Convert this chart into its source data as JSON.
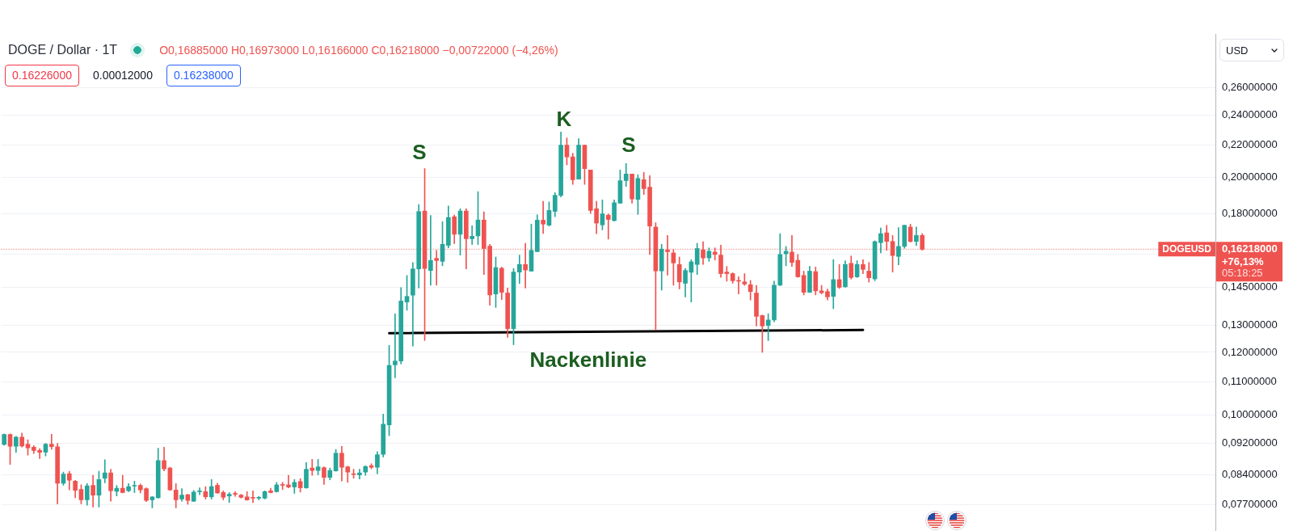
{
  "chart_data": {
    "type": "candlestick",
    "title": "DOGE / Dollar · 1T",
    "subtitle": "O0,16885000 H0,16973000 L0,16166000 C0,16218000 −0,00722000 (−4,26%)",
    "ylabel": "USD",
    "categories": [
      null,
      null,
      null,
      null,
      null,
      null,
      null,
      null,
      null,
      null,
      null,
      null,
      null,
      null,
      null,
      null,
      null,
      null,
      null,
      null,
      null,
      null,
      null,
      null,
      null,
      null,
      null,
      null,
      null,
      null,
      null,
      null,
      null,
      null,
      null,
      null,
      null,
      null,
      null,
      null,
      null,
      null,
      null,
      null,
      null,
      null,
      null,
      null,
      null,
      null,
      null,
      null,
      null,
      null,
      null,
      null,
      null,
      null,
      null,
      null,
      null,
      null,
      null,
      null,
      null,
      null,
      null,
      null,
      null,
      null,
      null,
      null,
      null,
      null,
      null,
      null,
      null,
      null,
      null,
      null,
      null,
      null,
      null,
      null,
      null,
      null,
      null,
      null,
      null,
      null,
      null,
      null,
      null,
      null,
      null,
      null,
      null,
      null,
      null,
      null,
      null,
      null,
      null,
      null,
      null,
      null,
      null,
      null,
      null,
      null,
      null,
      null,
      null,
      null,
      null,
      null,
      null,
      null,
      null,
      null,
      null,
      null,
      null,
      null,
      null,
      null,
      null,
      null,
      null,
      null,
      null,
      null,
      null,
      null,
      null,
      null,
      null,
      null,
      null,
      null,
      null,
      null,
      null,
      null,
      null,
      null,
      null,
      null,
      null,
      null,
      null,
      null,
      null,
      null,
      null,
      null,
      null,
      null,
      null,
      null,
      null,
      null,
      null,
      null,
      null,
      null,
      null,
      null,
      null,
      null,
      null,
      null,
      null,
      null,
      null,
      null,
      null,
      null,
      null,
      null,
      null,
      null,
      null,
      null,
      null,
      null,
      null,
      null,
      null,
      null,
      null,
      null,
      null,
      null,
      null,
      null,
      null,
      null,
      null,
      null,
      null,
      null,
      null,
      null,
      null
    ],
    "ohlc": [
      [
        0.0917,
        0.0946,
        0.0915,
        0.0944
      ],
      [
        0.0944,
        0.0946,
        0.0865,
        0.0912
      ],
      [
        0.0912,
        0.0939,
        0.0896,
        0.0937
      ],
      [
        0.0937,
        0.0948,
        0.091,
        0.0913
      ],
      [
        0.0918,
        0.093,
        0.0889,
        0.0908
      ],
      [
        0.091,
        0.0914,
        0.0893,
        0.0901
      ],
      [
        0.0901,
        0.0906,
        0.088,
        0.0896
      ],
      [
        0.0897,
        0.092,
        0.0887,
        0.0918
      ],
      [
        0.0918,
        0.0945,
        0.0904,
        0.0911
      ],
      [
        0.0911,
        0.092,
        0.0771,
        0.0819
      ],
      [
        0.0819,
        0.0846,
        0.0814,
        0.0841
      ],
      [
        0.0842,
        0.0848,
        0.0803,
        0.0826
      ],
      [
        0.0824,
        0.0826,
        0.0785,
        0.0802
      ],
      [
        0.0804,
        0.0815,
        0.0771,
        0.078
      ],
      [
        0.078,
        0.0818,
        0.0768,
        0.0813
      ],
      [
        0.0814,
        0.0838,
        0.0764,
        0.0791
      ],
      [
        0.0791,
        0.0848,
        0.0764,
        0.0828
      ],
      [
        0.0831,
        0.0877,
        0.082,
        0.0844
      ],
      [
        0.0844,
        0.0853,
        0.0777,
        0.0801
      ],
      [
        0.08,
        0.0814,
        0.0789,
        0.0807
      ],
      [
        0.0807,
        0.0838,
        0.0796,
        0.0797
      ],
      [
        0.0801,
        0.0818,
        0.0799,
        0.0811
      ],
      [
        0.0812,
        0.0824,
        0.0797,
        0.0814
      ],
      [
        0.0814,
        0.0817,
        0.0796,
        0.0803
      ],
      [
        0.0806,
        0.0808,
        0.0776,
        0.0779
      ],
      [
        0.078,
        0.0788,
        0.0762,
        0.0787
      ],
      [
        0.0785,
        0.0907,
        0.0784,
        0.0875
      ],
      [
        0.0875,
        0.091,
        0.0849,
        0.0854
      ],
      [
        0.0856,
        0.0858,
        0.0802,
        0.0803
      ],
      [
        0.0803,
        0.0818,
        0.0762,
        0.078
      ],
      [
        0.0782,
        0.0806,
        0.0777,
        0.0791
      ],
      [
        0.0792,
        0.0793,
        0.077,
        0.0779
      ],
      [
        0.0777,
        0.0802,
        0.0776,
        0.0798
      ],
      [
        0.0799,
        0.0808,
        0.0792,
        0.0801
      ],
      [
        0.0799,
        0.0811,
        0.0782,
        0.0787
      ],
      [
        0.0787,
        0.0828,
        0.0782,
        0.0811
      ],
      [
        0.0814,
        0.0819,
        0.0795,
        0.0796
      ],
      [
        0.0797,
        0.0801,
        0.078,
        0.0786
      ],
      [
        0.0789,
        0.0797,
        0.0774,
        0.0793
      ],
      [
        0.0795,
        0.0799,
        0.0788,
        0.0793
      ],
      [
        0.0791,
        0.0793,
        0.0784,
        0.0786
      ],
      [
        0.0787,
        0.0799,
        0.0779,
        0.078
      ],
      [
        0.0785,
        0.0801,
        0.0774,
        0.0784
      ],
      [
        0.0784,
        0.0788,
        0.078,
        0.0786
      ],
      [
        0.0784,
        0.0801,
        0.0782,
        0.0799
      ],
      [
        0.0801,
        0.0807,
        0.0796,
        0.0797
      ],
      [
        0.0799,
        0.0821,
        0.0798,
        0.0815
      ],
      [
        0.0815,
        0.0821,
        0.0804,
        0.0814
      ],
      [
        0.0815,
        0.0838,
        0.0808,
        0.081
      ],
      [
        0.081,
        0.0828,
        0.0795,
        0.0821
      ],
      [
        0.0823,
        0.083,
        0.0798,
        0.0808
      ],
      [
        0.0808,
        0.087,
        0.0807,
        0.0853
      ],
      [
        0.0856,
        0.0878,
        0.0838,
        0.085
      ],
      [
        0.085,
        0.0878,
        0.0839,
        0.0859
      ],
      [
        0.0857,
        0.0859,
        0.0816,
        0.0833
      ],
      [
        0.0833,
        0.0856,
        0.0827,
        0.085
      ],
      [
        0.0849,
        0.0904,
        0.0848,
        0.0894
      ],
      [
        0.0894,
        0.0912,
        0.0824,
        0.0858
      ],
      [
        0.0859,
        0.0861,
        0.0821,
        0.0846
      ],
      [
        0.0842,
        0.0853,
        0.0831,
        0.084
      ],
      [
        0.0839,
        0.0853,
        0.0829,
        0.0844
      ],
      [
        0.0846,
        0.0862,
        0.0838,
        0.086
      ],
      [
        0.0862,
        0.0867,
        0.0854,
        0.0858
      ],
      [
        0.0858,
        0.0898,
        0.0842,
        0.089
      ],
      [
        0.0891,
        0.1002,
        0.0884,
        0.0973
      ],
      [
        0.0971,
        0.1225,
        0.0941,
        0.1155
      ],
      [
        0.1157,
        0.1343,
        0.1114,
        0.117
      ],
      [
        0.117,
        0.145,
        0.116,
        0.1394
      ],
      [
        0.139,
        0.1502,
        0.1357,
        0.1413
      ],
      [
        0.1418,
        0.156,
        0.1222,
        0.1531
      ],
      [
        0.1531,
        0.1848,
        0.1448,
        0.181
      ],
      [
        0.1813,
        0.2052,
        0.1242,
        0.1533
      ],
      [
        0.1524,
        0.179,
        0.146,
        0.1569
      ],
      [
        0.1579,
        0.1616,
        0.146,
        0.1569
      ],
      [
        0.1565,
        0.1757,
        0.1545,
        0.1645
      ],
      [
        0.164,
        0.184,
        0.1628,
        0.1779
      ],
      [
        0.1783,
        0.1792,
        0.1648,
        0.1694
      ],
      [
        0.1694,
        0.1825,
        0.1594,
        0.1813
      ],
      [
        0.1813,
        0.1825,
        0.1531,
        0.1672
      ],
      [
        0.1672,
        0.1737,
        0.1644,
        0.1684
      ],
      [
        0.1686,
        0.1918,
        0.1644,
        0.1766
      ],
      [
        0.1766,
        0.1809,
        0.1506,
        0.1625
      ],
      [
        0.1636,
        0.1645,
        0.1377,
        0.1419
      ],
      [
        0.1423,
        0.1585,
        0.1368,
        0.1537
      ],
      [
        0.1534,
        0.1539,
        0.14,
        0.143
      ],
      [
        0.1427,
        0.1448,
        0.1254,
        0.1286
      ],
      [
        0.1286,
        0.1533,
        0.1227,
        0.1517
      ],
      [
        0.1517,
        0.1594,
        0.1467,
        0.1551
      ],
      [
        0.1551,
        0.165,
        0.1448,
        0.1526
      ],
      [
        0.1521,
        0.1745,
        0.1521,
        0.1616
      ],
      [
        0.161,
        0.1793,
        0.161,
        0.1765
      ],
      [
        0.1765,
        0.1865,
        0.1698,
        0.1745
      ],
      [
        0.174,
        0.1862,
        0.1735,
        0.1816
      ],
      [
        0.1811,
        0.1913,
        0.1783,
        0.1898
      ],
      [
        0.1898,
        0.2283,
        0.1889,
        0.2197
      ],
      [
        0.2197,
        0.2245,
        0.2075,
        0.2123
      ],
      [
        0.2123,
        0.2146,
        0.1959,
        0.1986
      ],
      [
        0.199,
        0.2239,
        0.199,
        0.2197
      ],
      [
        0.2197,
        0.2197,
        0.1959,
        0.2051
      ],
      [
        0.2044,
        0.2044,
        0.18,
        0.1816
      ],
      [
        0.1825,
        0.1865,
        0.1697,
        0.175
      ],
      [
        0.1741,
        0.1873,
        0.1716,
        0.1798
      ],
      [
        0.1791,
        0.1798,
        0.167,
        0.1769
      ],
      [
        0.1763,
        0.1873,
        0.176,
        0.1857
      ],
      [
        0.1855,
        0.2044,
        0.1855,
        0.1981
      ],
      [
        0.1981,
        0.2083,
        0.1948,
        0.202
      ],
      [
        0.202,
        0.202,
        0.1855,
        0.1878
      ],
      [
        0.1876,
        0.2015,
        0.1795,
        0.1993
      ],
      [
        0.1986,
        0.2029,
        0.1902,
        0.1935
      ],
      [
        0.1944,
        0.201,
        0.1597,
        0.1735
      ],
      [
        0.173,
        0.1752,
        0.1281,
        0.1522
      ],
      [
        0.1522,
        0.1645,
        0.1439,
        0.1622
      ],
      [
        0.1618,
        0.1688,
        0.1503,
        0.161
      ],
      [
        0.1604,
        0.162,
        0.146,
        0.1558
      ],
      [
        0.1551,
        0.1585,
        0.1444,
        0.1474
      ],
      [
        0.1468,
        0.1533,
        0.1411,
        0.1524
      ],
      [
        0.1516,
        0.1573,
        0.139,
        0.1563
      ],
      [
        0.1551,
        0.165,
        0.1506,
        0.1625
      ],
      [
        0.1618,
        0.1657,
        0.1551,
        0.1581
      ],
      [
        0.1581,
        0.1628,
        0.1565,
        0.1612
      ],
      [
        0.1608,
        0.1628,
        0.1571,
        0.1597
      ],
      [
        0.1594,
        0.1641,
        0.1494,
        0.151
      ],
      [
        0.1517,
        0.1542,
        0.1477,
        0.151
      ],
      [
        0.151,
        0.1514,
        0.1468,
        0.1479
      ],
      [
        0.1479,
        0.1497,
        0.1423,
        0.1477
      ],
      [
        0.1474,
        0.151,
        0.1459,
        0.1465
      ],
      [
        0.1462,
        0.148,
        0.1398,
        0.1433
      ],
      [
        0.1427,
        0.1459,
        0.1296,
        0.1333
      ],
      [
        0.1336,
        0.1338,
        0.12,
        0.1296
      ],
      [
        0.1298,
        0.1343,
        0.1242,
        0.1319
      ],
      [
        0.1319,
        0.1477,
        0.1312,
        0.146
      ],
      [
        0.146,
        0.1697,
        0.1458,
        0.1597
      ],
      [
        0.16,
        0.1635,
        0.1545,
        0.1612
      ],
      [
        0.1608,
        0.1688,
        0.1542,
        0.156
      ],
      [
        0.157,
        0.1597,
        0.1494,
        0.1496
      ],
      [
        0.1502,
        0.1521,
        0.1419,
        0.143
      ],
      [
        0.143,
        0.1542,
        0.143,
        0.1521
      ],
      [
        0.1519,
        0.1539,
        0.1419,
        0.1436
      ],
      [
        0.1436,
        0.1459,
        0.1423,
        0.1428
      ],
      [
        0.1433,
        0.1444,
        0.1398,
        0.1411
      ],
      [
        0.1413,
        0.1573,
        0.1363,
        0.1484
      ],
      [
        0.1484,
        0.1551,
        0.1446,
        0.1451
      ],
      [
        0.1453,
        0.1568,
        0.1451,
        0.1551
      ],
      [
        0.1556,
        0.159,
        0.1486,
        0.1493
      ],
      [
        0.1496,
        0.1568,
        0.1493,
        0.1551
      ],
      [
        0.1551,
        0.1573,
        0.151,
        0.1529
      ],
      [
        0.1521,
        0.156,
        0.1473,
        0.1492
      ],
      [
        0.1487,
        0.1662,
        0.1479,
        0.1658
      ],
      [
        0.1653,
        0.1725,
        0.1604,
        0.1697
      ],
      [
        0.1701,
        0.1739,
        0.1616,
        0.1659
      ],
      [
        0.1659,
        0.1688,
        0.1517,
        0.1592
      ],
      [
        0.1588,
        0.1727,
        0.1549,
        0.1635
      ],
      [
        0.1635,
        0.1739,
        0.1626,
        0.1739
      ],
      [
        0.173,
        0.1745,
        0.1655,
        0.1659
      ],
      [
        0.1659,
        0.173,
        0.1639,
        0.1688
      ],
      [
        0.16885,
        0.16973,
        0.16166,
        0.16218
      ],
      null,
      null,
      null,
      null,
      null,
      null,
      null,
      null,
      null,
      null,
      null,
      null,
      null,
      null,
      null,
      null,
      null,
      null,
      null,
      null,
      null,
      null,
      null,
      null,
      null,
      null,
      null,
      null,
      null,
      null,
      null,
      null,
      null,
      null,
      null,
      null,
      null,
      null,
      null,
      null,
      null,
      null,
      null,
      null,
      null,
      null,
      null,
      null,
      null
    ],
    "colors": [
      "#26a69a",
      "#ef5350",
      "#26a69a",
      "#ef5350",
      "#ef5350",
      "#ef5350",
      "#ef5350",
      "#26a69a",
      "#ef5350",
      "#ef5350",
      "#26a69a",
      "#ef5350",
      "#ef5350",
      "#ef5350",
      "#26a69a",
      "#ef5350",
      "#26a69a",
      "#26a69a",
      "#ef5350",
      "#26a69a",
      "#ef5350",
      "#26a69a",
      "#26a69a",
      "#ef5350",
      "#ef5350",
      "#26a69a",
      "#26a69a",
      "#ef5350",
      "#ef5350",
      "#ef5350",
      "#26a69a",
      "#ef5350",
      "#26a69a",
      "#26a69a",
      "#ef5350",
      "#26a69a",
      "#ef5350",
      "#ef5350",
      "#26a69a",
      "#ef5350",
      "#ef5350",
      "#ef5350",
      "#ef5350",
      "#26a69a",
      "#26a69a",
      "#ef5350",
      "#26a69a",
      "#ef5350",
      "#ef5350",
      "#26a69a",
      "#ef5350",
      "#26a69a",
      "#ef5350",
      "#26a69a",
      "#ef5350",
      "#26a69a",
      "#26a69a",
      "#ef5350",
      "#ef5350",
      "#ef5350",
      "#26a69a",
      "#26a69a",
      "#ef5350",
      "#26a69a",
      "#26a69a",
      "#26a69a",
      "#26a69a",
      "#26a69a",
      "#26a69a",
      "#26a69a",
      "#26a69a",
      "#ef5350",
      "#26a69a",
      "#ef5350",
      "#26a69a",
      "#26a69a",
      "#ef5350",
      "#26a69a",
      "#ef5350",
      "#26a69a",
      "#26a69a",
      "#ef5350",
      "#ef5350",
      "#26a69a",
      "#ef5350",
      "#ef5350",
      "#26a69a",
      "#26a69a",
      "#ef5350",
      "#26a69a",
      "#26a69a",
      "#ef5350",
      "#26a69a",
      "#26a69a",
      "#26a69a",
      "#ef5350",
      "#ef5350",
      "#26a69a",
      "#ef5350",
      "#ef5350",
      "#ef5350",
      "#26a69a",
      "#ef5350",
      "#26a69a",
      "#26a69a",
      "#26a69a",
      "#ef5350",
      "#26a69a",
      "#ef5350",
      "#ef5350",
      "#ef5350",
      "#26a69a",
      "#ef5350",
      "#ef5350",
      "#ef5350",
      "#26a69a",
      "#26a69a",
      "#26a69a",
      "#ef5350",
      "#26a69a",
      "#ef5350",
      "#ef5350",
      "#ef5350",
      "#ef5350",
      "#ef5350",
      "#ef5350",
      "#ef5350",
      "#ef5350",
      "#ef5350",
      "#26a69a",
      "#26a69a",
      "#26a69a",
      "#26a69a",
      "#ef5350",
      "#ef5350",
      "#ef5350",
      "#26a69a",
      "#ef5350",
      "#ef5350",
      "#ef5350",
      "#26a69a",
      "#ef5350",
      "#26a69a",
      "#ef5350",
      "#26a69a",
      "#ef5350",
      "#ef5350",
      "#26a69a",
      "#26a69a",
      "#ef5350",
      "#ef5350",
      "#26a69a",
      "#26a69a",
      "#ef5350",
      "#26a69a",
      "#ef5350",
      null,
      null,
      null,
      null,
      null,
      null,
      null,
      null,
      null,
      null,
      null,
      null,
      null,
      null,
      null,
      null,
      null,
      null,
      null,
      null,
      null,
      null,
      null,
      null,
      null,
      null,
      null,
      null,
      null,
      null,
      null,
      null,
      null,
      null,
      null,
      null,
      null,
      null,
      null,
      null,
      null,
      null,
      null,
      null,
      null,
      null,
      null,
      null,
      null
    ],
    "series": [
      {
        "type": "line",
        "name": "Nackenlinie",
        "color": "#000000",
        "values": [
          null,
          null,
          null,
          null,
          null,
          null,
          null,
          null,
          null,
          null,
          null,
          null,
          null,
          null,
          null,
          null,
          null,
          null,
          null,
          null,
          null,
          null,
          null,
          null,
          null,
          null,
          null,
          null,
          null,
          null,
          null,
          null,
          null,
          null,
          null,
          null,
          null,
          null,
          null,
          null,
          null,
          null,
          null,
          null,
          null,
          null,
          null,
          null,
          null,
          null,
          null,
          null,
          null,
          null,
          null,
          null,
          null,
          null,
          null,
          null,
          null,
          null,
          null,
          null,
          null,
          0.1269,
          null,
          null,
          null,
          null,
          null,
          null,
          null,
          null,
          null,
          null,
          null,
          null,
          null,
          null,
          null,
          null,
          null,
          null,
          null,
          null,
          null,
          null,
          null,
          null,
          null,
          null,
          null,
          null,
          null,
          null,
          null,
          null,
          null,
          null,
          null,
          null,
          null,
          null,
          null,
          null,
          null,
          null,
          null,
          null,
          null,
          null,
          null,
          null,
          null,
          null,
          null,
          null,
          null,
          null,
          null,
          null,
          null,
          null,
          null,
          null,
          null,
          null,
          null,
          null,
          null,
          null,
          null,
          null,
          null,
          null,
          null,
          null,
          null,
          null,
          null,
          null,
          null,
          null,
          null,
          0.1281,
          null,
          null,
          null,
          null,
          null,
          null,
          null,
          null,
          null,
          null,
          null,
          null,
          null,
          null,
          null,
          null,
          null,
          null,
          null,
          null,
          null,
          null,
          null,
          null,
          null,
          null,
          null,
          null,
          null,
          null,
          null,
          null,
          null,
          null,
          null,
          null,
          null,
          null,
          null,
          null,
          null,
          null,
          null,
          null,
          null,
          null,
          null,
          null,
          null,
          null,
          null,
          null,
          null,
          null,
          null,
          null,
          null,
          null,
          null
        ]
      }
    ],
    "ylim": [
      0.0712,
      0.304
    ],
    "yticks": [
      {
        "value": 0.077,
        "label": "0,07700000"
      },
      {
        "value": 0.084,
        "label": "0,08400000"
      },
      {
        "value": 0.092,
        "label": "0,09200000"
      },
      {
        "value": 0.1,
        "label": "0,10000000"
      },
      {
        "value": 0.11,
        "label": "0,11000000"
      },
      {
        "value": 0.12,
        "label": "0,12000000"
      },
      {
        "value": 0.13,
        "label": "0,13000000"
      },
      {
        "value": 0.145,
        "label": "0,14500000"
      },
      {
        "value": 0.16,
        "label": null
      },
      {
        "value": 0.18,
        "label": "0,18000000"
      },
      {
        "value": 0.2,
        "label": "0,20000000"
      },
      {
        "value": 0.22,
        "label": "0,22000000"
      },
      {
        "value": 0.24,
        "label": "0,24000000"
      },
      {
        "value": 0.26,
        "label": "0,26000000"
      }
    ],
    "log": true,
    "grid": "y",
    "tick_labels": "y",
    "ref_lines": [
      {
        "axis": "y",
        "value": 0.16218,
        "label": "DOGEUSD",
        "color": "#ef5350",
        "line_style": "dotted"
      }
    ],
    "annotations": [
      "0.16226000",
      "0.00012000",
      "0.16238000",
      "S",
      "K",
      "S",
      "0,16218000",
      "+76,13%",
      "05:18:25"
    ]
  }
}
